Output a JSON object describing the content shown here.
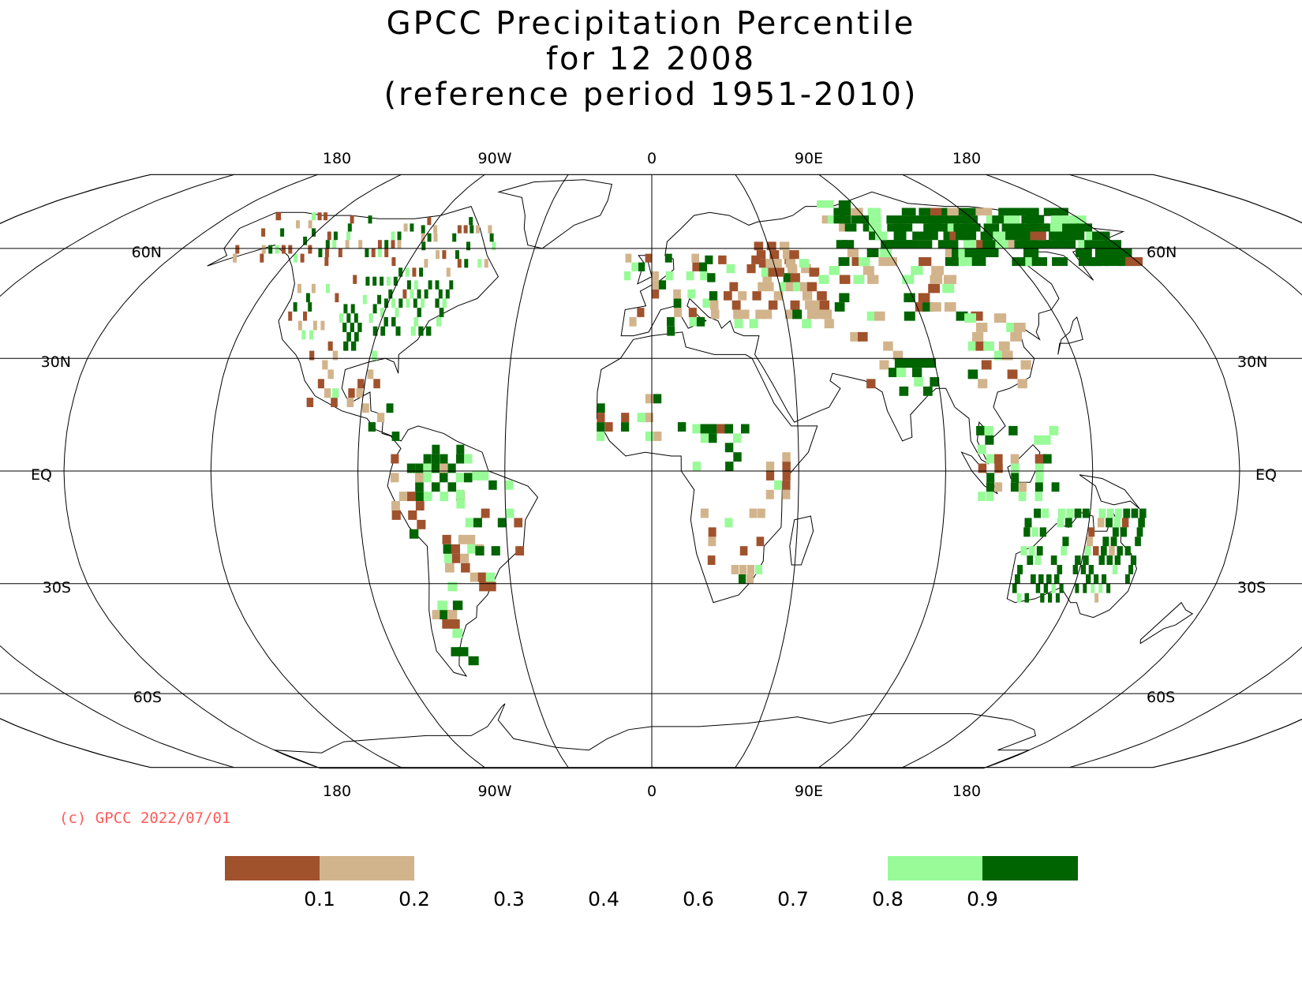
{
  "title": {
    "line1": "GPCC Precipitation Percentile",
    "line2": "for 12 2008",
    "line3": "(reference period 1951-2010)"
  },
  "map": {
    "projection": "Robinson",
    "longitude_labels_top": [
      "180",
      "90W",
      "0",
      "90E",
      "180"
    ],
    "longitude_labels_bottom": [
      "180",
      "90W",
      "0",
      "90E",
      "180"
    ],
    "latitude_labels_left": [
      "60N",
      "30N",
      "EQ",
      "30S",
      "60S"
    ],
    "latitude_labels_right": [
      "60N",
      "30N",
      "EQ",
      "30S",
      "60S"
    ],
    "colors": {
      "very_dry": "#a0522d",
      "dry": "#d2b48c",
      "wet": "#98fb98",
      "very_wet": "#006400",
      "coastline": "#000000",
      "grid": "#000000"
    }
  },
  "copyright": "(c) GPCC 2022/07/01",
  "legend": {
    "bins": [
      {
        "range": [
          0.0,
          0.1
        ],
        "color": "#a0522d"
      },
      {
        "range": [
          0.1,
          0.2
        ],
        "color": "#d2b48c"
      },
      {
        "range": [
          0.8,
          0.9
        ],
        "color": "#98fb98"
      },
      {
        "range": [
          0.9,
          1.0
        ],
        "color": "#006400"
      }
    ],
    "tick_labels": [
      "0.1",
      "0.2",
      "0.3",
      "0.4",
      "0.6",
      "0.7",
      "0.8",
      "0.9"
    ]
  }
}
